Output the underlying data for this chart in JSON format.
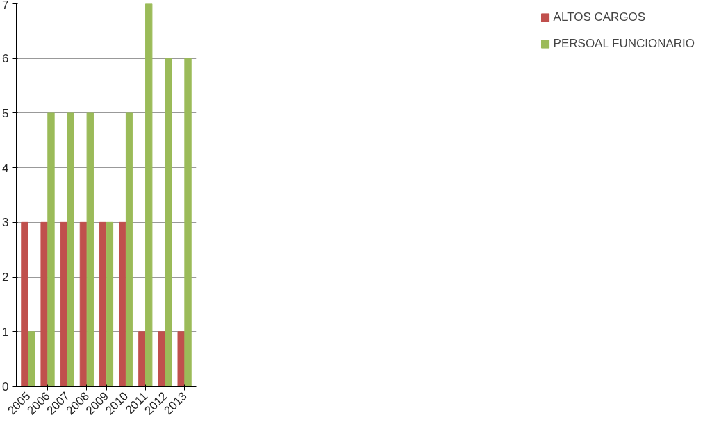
{
  "chart_data": {
    "type": "bar",
    "categories": [
      "2005",
      "2006",
      "2007",
      "2008",
      "2009",
      "2010",
      "2011",
      "2012",
      "2013"
    ],
    "series": [
      {
        "name": "ALTOS CARGOS",
        "color": "#c0504d",
        "values": [
          3,
          3,
          3,
          3,
          3,
          3,
          1,
          1,
          1
        ]
      },
      {
        "name": "PERSOAL FUNCIONARIO",
        "color": "#9bbb59",
        "values": [
          1,
          5,
          5,
          5,
          3,
          5,
          7,
          6,
          6
        ]
      }
    ],
    "ylim": [
      0,
      7
    ],
    "yticks": [
      0,
      1,
      2,
      3,
      4,
      5,
      6,
      7
    ],
    "grid": "y",
    "legend": "right"
  }
}
